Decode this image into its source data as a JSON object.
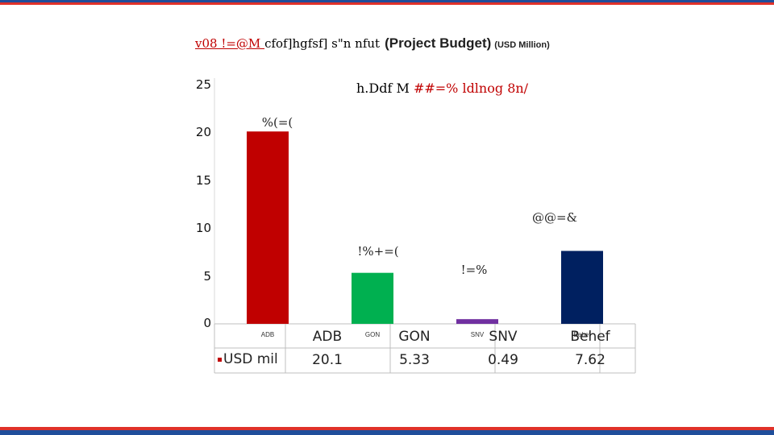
{
  "header": {
    "title_nepali_red": "v08 !=@M ",
    "title_nepali_black": "cfof]hgfsf] s\"n nfut",
    "title_main": "(Project Budget)",
    "title_unit": "(USD Million)"
  },
  "total": {
    "label": "h.Ddf M ",
    "value": "##=% ldlnog 8n/"
  },
  "colors": {
    "bar_adb": "#c00000",
    "bar_gon": "#00b050",
    "bar_snv": "#7030a0",
    "bar_behef": "#002060",
    "top_blue": "#1f4e9b",
    "bottom_red": "#e0322a"
  },
  "chart_data": {
    "type": "bar",
    "categories": [
      "ADB",
      "GON",
      "SNV",
      "Behef"
    ],
    "category_small_labels": [
      "ADB",
      "GON",
      "SNV",
      "Behef"
    ],
    "values": [
      20.1,
      5.33,
      0.49,
      7.62
    ],
    "value_labels": [
      "%(=(",
      "!%+=(",
      "!=%",
      "@@=&"
    ],
    "ylim": [
      0,
      25
    ],
    "yticks": [
      "0",
      "5",
      "10",
      "15",
      "20",
      "25"
    ],
    "legend_label": "USD mil",
    "table_values": [
      "20.1",
      "5.33",
      "0.49",
      "7.62"
    ],
    "grid": false
  }
}
